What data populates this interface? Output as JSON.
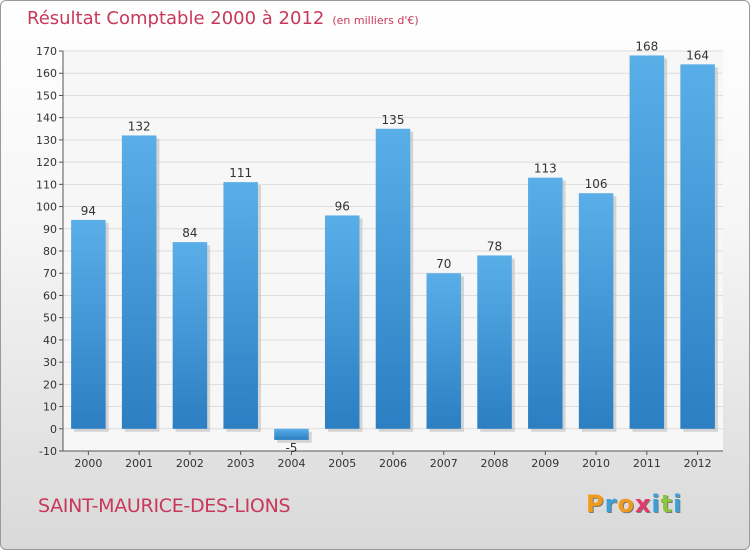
{
  "title": "Résultat Comptable 2000 à 2012",
  "subtitle": "(en milliers d'€)",
  "city": "SAINT-MAURICE-DES-LIONS",
  "brand": {
    "letters": [
      "P",
      "r",
      "o",
      "x",
      "i",
      "t",
      "i"
    ],
    "colors": [
      "#f29a1e",
      "#3aa0d8",
      "#f29a1e",
      "#e23a6a",
      "#3aa0d8",
      "#8cc63f",
      "#3aa0d8"
    ]
  },
  "colors": {
    "title": "#c8385a",
    "bar_light": "#5aaee8",
    "bar_dark": "#2b7fc2",
    "grid": "#dddddd"
  },
  "chart_data": {
    "type": "bar",
    "title": "Résultat Comptable 2000 à 2012",
    "subtitle": "(en milliers d'€)",
    "categories": [
      "2000",
      "2001",
      "2002",
      "2003",
      "2004",
      "2005",
      "2006",
      "2007",
      "2008",
      "2009",
      "2010",
      "2011",
      "2012"
    ],
    "values": [
      94,
      132,
      84,
      111,
      -5,
      96,
      135,
      70,
      78,
      113,
      106,
      168,
      164
    ],
    "ylim": [
      -10,
      170
    ],
    "yticks": [
      -10,
      0,
      10,
      20,
      30,
      40,
      50,
      60,
      70,
      80,
      90,
      100,
      110,
      120,
      130,
      140,
      150,
      160,
      170
    ],
    "grid": true,
    "xlabel": "",
    "ylabel": ""
  }
}
